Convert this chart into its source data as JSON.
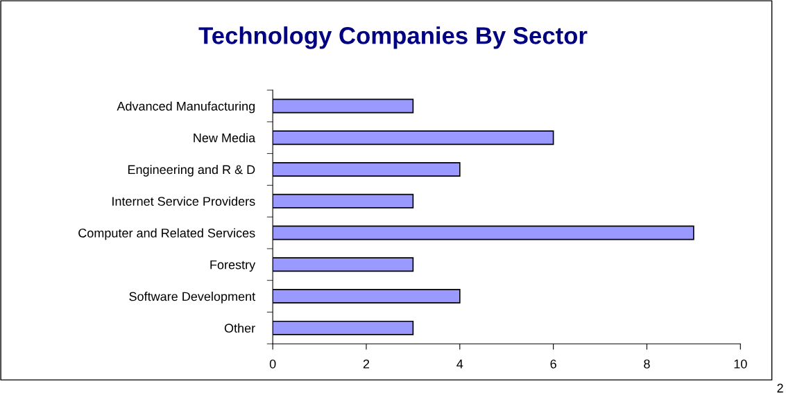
{
  "chart_data": {
    "type": "bar",
    "orientation": "horizontal",
    "title": "Technology Companies By Sector",
    "categories": [
      "Advanced Manufacturing",
      "New Media",
      "Engineering and R & D",
      "Internet Service Providers",
      "Computer and Related Services",
      "Forestry",
      "Software Development",
      "Other"
    ],
    "values": [
      3,
      6,
      4,
      3,
      9,
      3,
      4,
      3
    ],
    "color": "#9999ff",
    "xlim": [
      0,
      10
    ],
    "xticks": [
      0,
      2,
      4,
      6,
      8,
      10
    ],
    "grid": false,
    "legend": false,
    "annotations": [
      "2"
    ]
  }
}
